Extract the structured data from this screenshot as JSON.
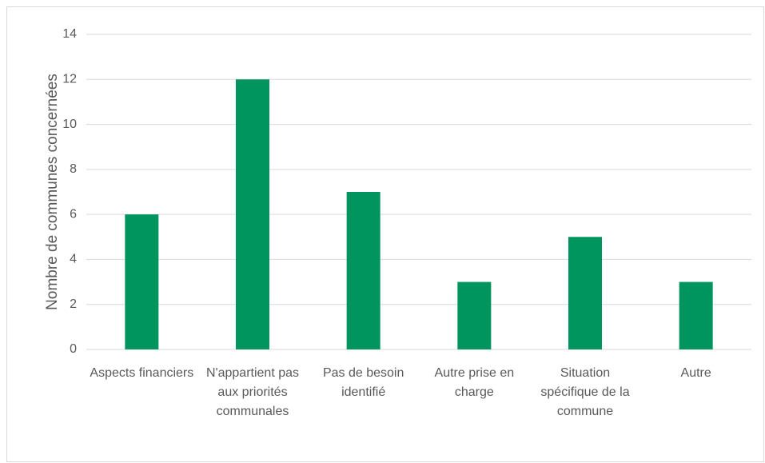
{
  "chart_data": {
    "type": "bar",
    "y_label": "Nombre de communes concernées",
    "categories": [
      "Aspects financiers",
      "N'appartient pas aux priorités communales",
      "Pas de besoin identifié",
      "Autre prise en charge",
      "Situation spécifique de la commune",
      "Autre"
    ],
    "values": [
      6,
      12,
      7,
      3,
      5,
      3
    ],
    "color": "#00945e",
    "ylim": [
      0,
      14
    ],
    "yticks": [
      0,
      2,
      4,
      6,
      8,
      10,
      12,
      14
    ],
    "grid": true
  }
}
